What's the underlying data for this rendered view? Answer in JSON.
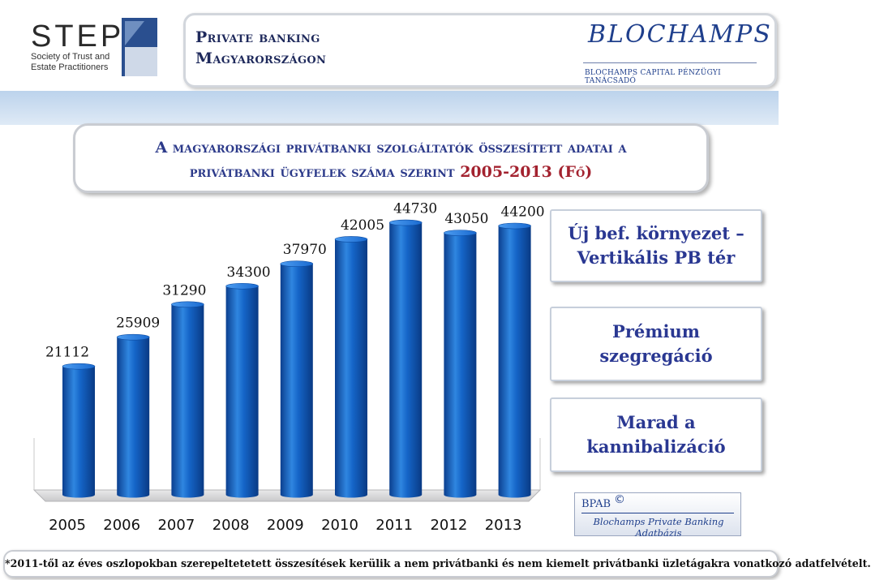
{
  "header": {
    "step_logo": {
      "name": "STEP",
      "subtitle_lines": [
        "Society of Trust and",
        "Estate Practitioners"
      ]
    },
    "title_lines": [
      "Private banking",
      "Magyarországon"
    ],
    "blochamps_logo": {
      "name": "BLOCHAMPS",
      "tagline": "BLOCHAMPS CAPITAL PÉNZÜGYI TANÁCSADÓ"
    }
  },
  "heading": {
    "line1": "A magyarországi privátbanki szolgáltatók összesített adatai a",
    "line2_prefix": "privátbanki ügyfelek száma szerint",
    "line2_years": "2005-2013 (Fő)"
  },
  "chart_data": {
    "type": "bar",
    "categories": [
      "2005",
      "2006",
      "2007",
      "2008",
      "2009",
      "2010",
      "2011",
      "2012",
      "2013"
    ],
    "values": [
      21112,
      25909,
      31290,
      34300,
      37970,
      42005,
      44730,
      43050,
      44200
    ],
    "data_labels": [
      "21112",
      "25909",
      "31290",
      "34300",
      "37970",
      "42005",
      "44730",
      "43050",
      "44200"
    ],
    "title": "",
    "xlabel": "",
    "ylabel": "",
    "ylim": [
      0,
      46000
    ],
    "grid": false,
    "bar_color": "#1565c8"
  },
  "callouts": [
    {
      "lines": [
        "Új bef. környezet –",
        "Vertikális PB tér"
      ]
    },
    {
      "lines": [
        "Prémium",
        "szegregáció"
      ]
    },
    {
      "lines": [
        "Marad a",
        "kannibalizáció"
      ]
    }
  ],
  "bpab_logo": {
    "title": "BPAB",
    "copyright": "©",
    "subtitle": "Blochamps Private Banking Adatbázis"
  },
  "footnote": "*2011-től az éves oszlopokban szerepeltetetett összesítések kerülik a nem privátbanki és nem kiemelt privátbanki üzletágakra vonatkozó adatfelvételt."
}
